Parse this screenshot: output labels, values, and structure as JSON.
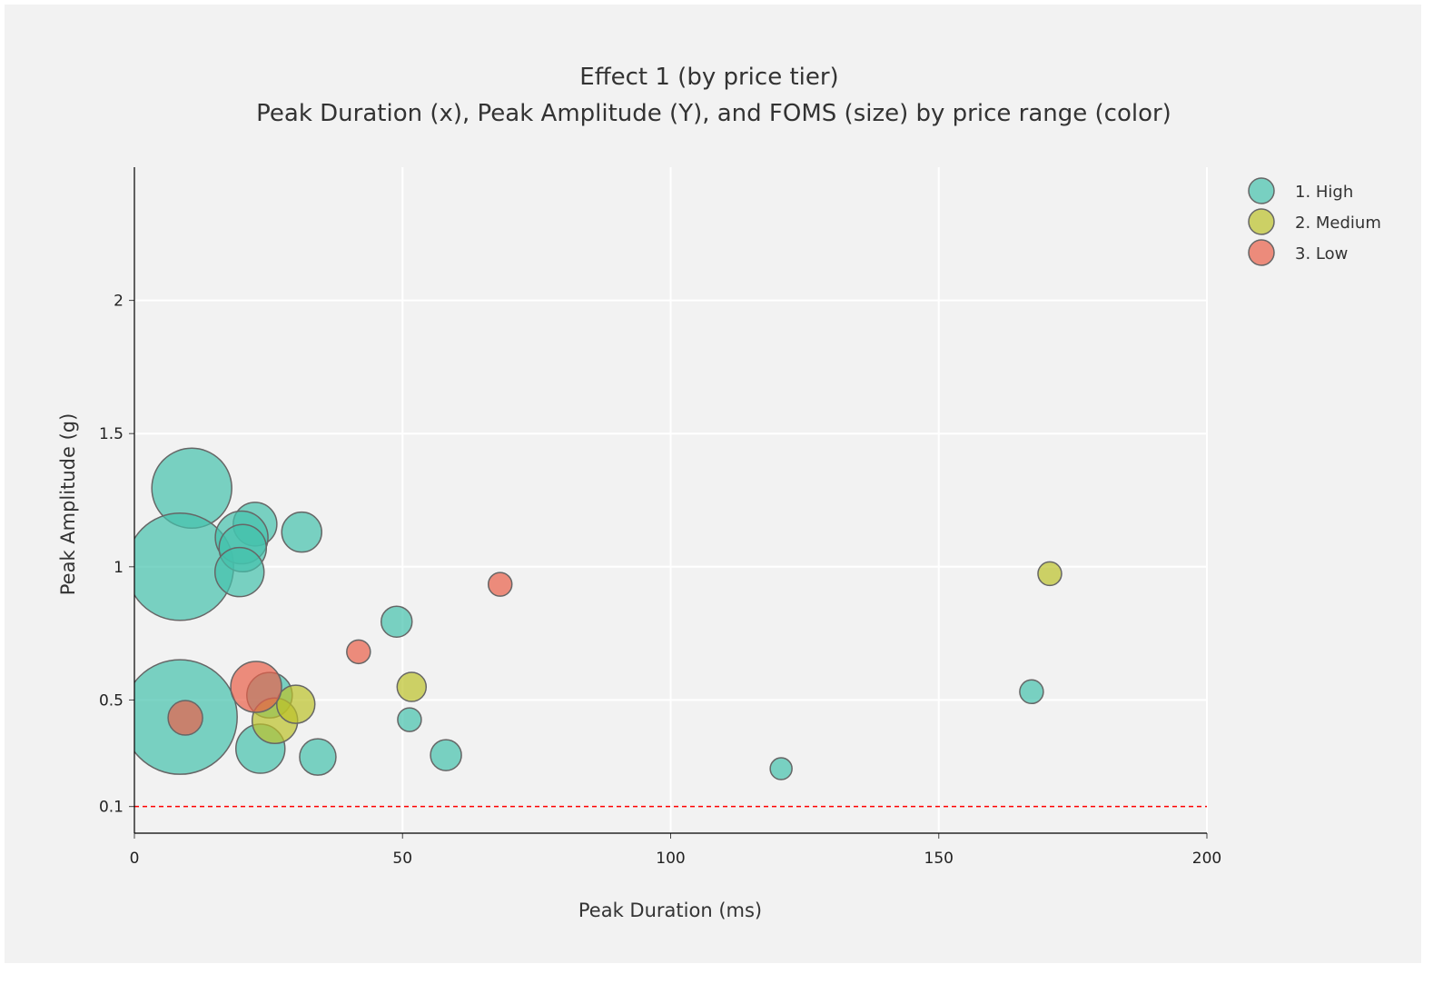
{
  "chart_data": {
    "type": "scatter",
    "title": "Effect 1 (by price tier)",
    "subtitle": "Peak Duration (x), Peak Amplitude (Y), and FOMS (size) by price range (color)",
    "xlabel": "Peak Duration (ms)",
    "ylabel": "Peak Amplitude (g)",
    "xlim": [
      0,
      200
    ],
    "ylim": [
      0,
      2.5
    ],
    "xticks": [
      0,
      50,
      100,
      150,
      200
    ],
    "yticks": [
      0.1,
      0.5,
      1,
      1.5,
      2
    ],
    "ytick_labels": [
      "0.1",
      "0.5",
      "1",
      "1.5",
      "2"
    ],
    "grid": true,
    "legend_placement": "top-right",
    "reference_line": {
      "y": 0.1,
      "color": "#ff0000",
      "style": "dashed"
    },
    "series": [
      {
        "name": "1. High",
        "color": "#45c2ad",
        "points": [
          {
            "x": 10.7,
            "y": 1.295,
            "size": 44
          },
          {
            "x": 8.5,
            "y": 1.0,
            "size": 59
          },
          {
            "x": 22.5,
            "y": 1.16,
            "size": 24
          },
          {
            "x": 20,
            "y": 1.11,
            "size": 29
          },
          {
            "x": 20.2,
            "y": 1.07,
            "size": 26
          },
          {
            "x": 19.6,
            "y": 0.98,
            "size": 27
          },
          {
            "x": 31.2,
            "y": 1.13,
            "size": 22
          },
          {
            "x": 8.5,
            "y": 0.436,
            "size": 63
          },
          {
            "x": 23.5,
            "y": 0.317,
            "size": 27
          },
          {
            "x": 34.2,
            "y": 0.286,
            "size": 20
          },
          {
            "x": 25.2,
            "y": 0.518,
            "size": 25
          },
          {
            "x": 48.9,
            "y": 0.794,
            "size": 17
          },
          {
            "x": 51.3,
            "y": 0.426,
            "size": 13
          },
          {
            "x": 58.1,
            "y": 0.293,
            "size": 17
          },
          {
            "x": 120.6,
            "y": 0.242,
            "size": 12
          },
          {
            "x": 167.3,
            "y": 0.531,
            "size": 13
          }
        ]
      },
      {
        "name": "2. Medium",
        "color": "#bcc22a",
        "points": [
          {
            "x": 26.2,
            "y": 0.422,
            "size": 25
          },
          {
            "x": 30.1,
            "y": 0.484,
            "size": 21
          },
          {
            "x": 51.7,
            "y": 0.549,
            "size": 16
          },
          {
            "x": 170.7,
            "y": 0.974,
            "size": 13
          }
        ]
      },
      {
        "name": "3. Low",
        "color": "#ea5f48",
        "points": [
          {
            "x": 22.7,
            "y": 0.549,
            "size": 28
          },
          {
            "x": 9.5,
            "y": 0.433,
            "size": 19
          },
          {
            "x": 41.8,
            "y": 0.681,
            "size": 13
          },
          {
            "x": 68.2,
            "y": 0.934,
            "size": 13
          }
        ]
      }
    ]
  }
}
